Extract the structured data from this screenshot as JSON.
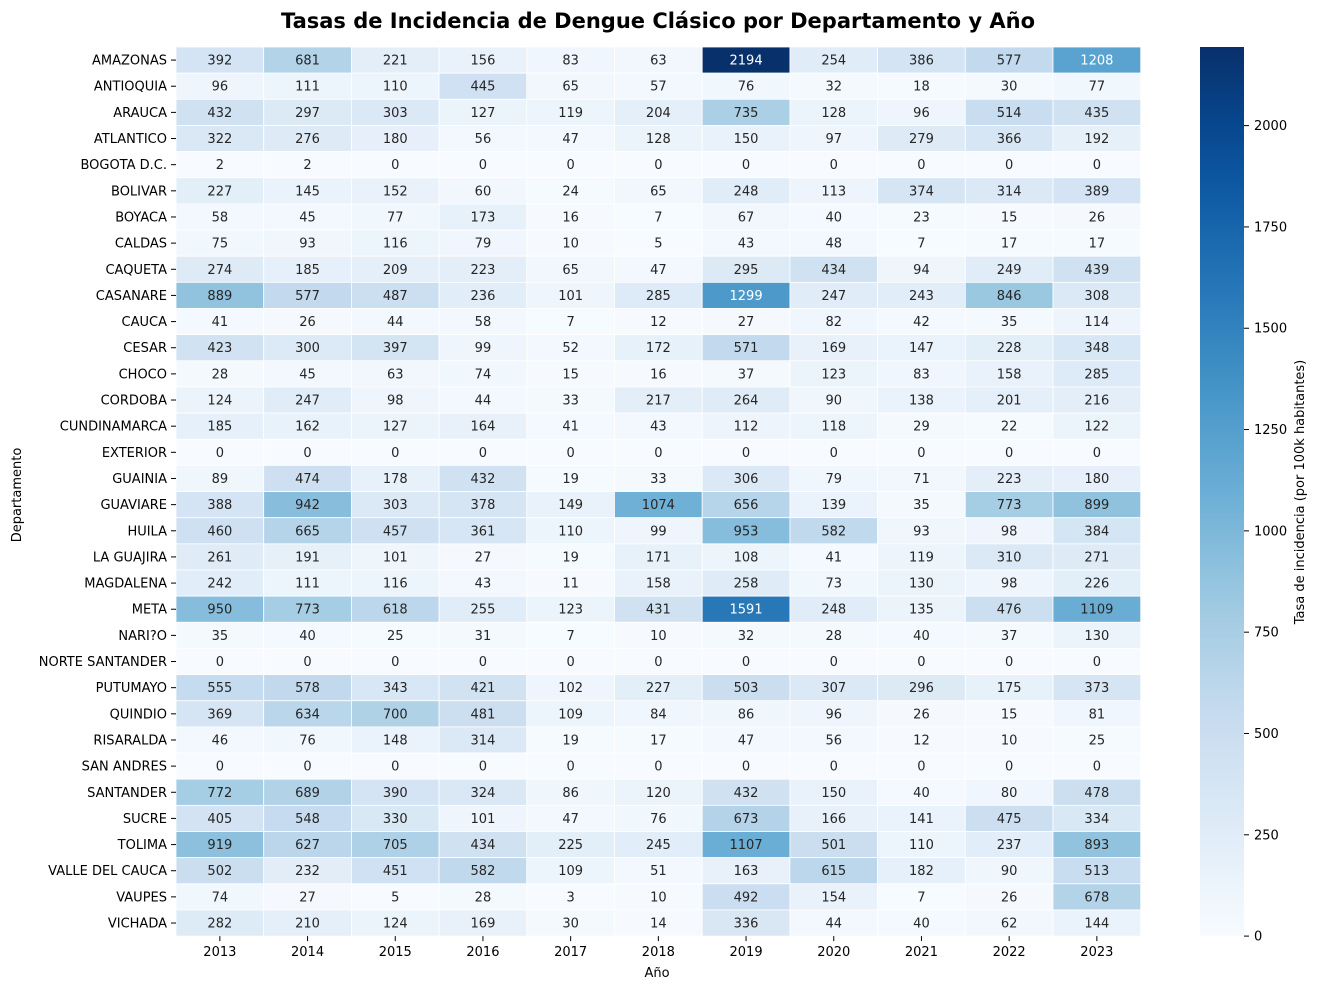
{
  "chart_data": {
    "type": "heatmap",
    "title": "Tasas de Incidencia de Dengue Clásico por Departamento y Año",
    "xlabel": "Año",
    "ylabel": "Departamento",
    "colorbar_label": "Tasa de incidencia (por 100k habitantes)",
    "colormap": "Blues",
    "vmin": 0,
    "vmax": 2194,
    "colorbar_ticks": [
      "0",
      "250",
      "500",
      "750",
      "1000",
      "1250",
      "1500",
      "1750",
      "2000"
    ],
    "x": [
      "2013",
      "2014",
      "2015",
      "2016",
      "2017",
      "2018",
      "2019",
      "2020",
      "2021",
      "2022",
      "2023"
    ],
    "y": [
      "AMAZONAS",
      "ANTIOQUIA",
      "ARAUCA",
      "ATLANTICO",
      "BOGOTA D.C.",
      "BOLIVAR",
      "BOYACA",
      "CALDAS",
      "CAQUETA",
      "CASANARE",
      "CAUCA",
      "CESAR",
      "CHOCO",
      "CORDOBA",
      "CUNDINAMARCA",
      "EXTERIOR",
      "GUAINIA",
      "GUAVIARE",
      "HUILA",
      "LA GUAJIRA",
      "MAGDALENA",
      "META",
      "NARI?O",
      "NORTE SANTANDER",
      "PUTUMAYO",
      "QUINDIO",
      "RISARALDA",
      "SAN ANDRES",
      "SANTANDER",
      "SUCRE",
      "TOLIMA",
      "VALLE DEL CAUCA",
      "VAUPES",
      "VICHADA"
    ],
    "values": [
      [
        392,
        681,
        221,
        156,
        83,
        63,
        2194,
        254,
        386,
        577,
        1208
      ],
      [
        96,
        111,
        110,
        445,
        65,
        57,
        76,
        32,
        18,
        30,
        77
      ],
      [
        432,
        297,
        303,
        127,
        119,
        204,
        735,
        128,
        96,
        514,
        435
      ],
      [
        322,
        276,
        180,
        56,
        47,
        128,
        150,
        97,
        279,
        366,
        192
      ],
      [
        2,
        2,
        0,
        0,
        0,
        0,
        0,
        0,
        0,
        0,
        0
      ],
      [
        227,
        145,
        152,
        60,
        24,
        65,
        248,
        113,
        374,
        314,
        389
      ],
      [
        58,
        45,
        77,
        173,
        16,
        7,
        67,
        40,
        23,
        15,
        26
      ],
      [
        75,
        93,
        116,
        79,
        10,
        5,
        43,
        48,
        7,
        17,
        17
      ],
      [
        274,
        185,
        209,
        223,
        65,
        47,
        295,
        434,
        94,
        249,
        439
      ],
      [
        889,
        577,
        487,
        236,
        101,
        285,
        1299,
        247,
        243,
        846,
        308
      ],
      [
        41,
        26,
        44,
        58,
        7,
        12,
        27,
        82,
        42,
        35,
        114
      ],
      [
        423,
        300,
        397,
        99,
        52,
        172,
        571,
        169,
        147,
        228,
        348
      ],
      [
        28,
        45,
        63,
        74,
        15,
        16,
        37,
        123,
        83,
        158,
        285
      ],
      [
        124,
        247,
        98,
        44,
        33,
        217,
        264,
        90,
        138,
        201,
        216
      ],
      [
        185,
        162,
        127,
        164,
        41,
        43,
        112,
        118,
        29,
        22,
        122
      ],
      [
        0,
        0,
        0,
        0,
        0,
        0,
        0,
        0,
        0,
        0,
        0
      ],
      [
        89,
        474,
        178,
        432,
        19,
        33,
        306,
        79,
        71,
        223,
        180
      ],
      [
        388,
        942,
        303,
        378,
        149,
        1074,
        656,
        139,
        35,
        773,
        899
      ],
      [
        460,
        665,
        457,
        361,
        110,
        99,
        953,
        582,
        93,
        98,
        384
      ],
      [
        261,
        191,
        101,
        27,
        19,
        171,
        108,
        41,
        119,
        310,
        271
      ],
      [
        242,
        111,
        116,
        43,
        11,
        158,
        258,
        73,
        130,
        98,
        226
      ],
      [
        950,
        773,
        618,
        255,
        123,
        431,
        1591,
        248,
        135,
        476,
        1109
      ],
      [
        35,
        40,
        25,
        31,
        7,
        10,
        32,
        28,
        40,
        37,
        130
      ],
      [
        0,
        0,
        0,
        0,
        0,
        0,
        0,
        0,
        0,
        0,
        0
      ],
      [
        555,
        578,
        343,
        421,
        102,
        227,
        503,
        307,
        296,
        175,
        373
      ],
      [
        369,
        634,
        700,
        481,
        109,
        84,
        86,
        96,
        26,
        15,
        81
      ],
      [
        46,
        76,
        148,
        314,
        19,
        17,
        47,
        56,
        12,
        10,
        25
      ],
      [
        0,
        0,
        0,
        0,
        0,
        0,
        0,
        0,
        0,
        0,
        0
      ],
      [
        772,
        689,
        390,
        324,
        86,
        120,
        432,
        150,
        40,
        80,
        478
      ],
      [
        405,
        548,
        330,
        101,
        47,
        76,
        673,
        166,
        141,
        475,
        334
      ],
      [
        919,
        627,
        705,
        434,
        225,
        245,
        1107,
        501,
        110,
        237,
        893
      ],
      [
        502,
        232,
        451,
        582,
        109,
        51,
        163,
        615,
        182,
        90,
        513
      ],
      [
        74,
        27,
        5,
        28,
        3,
        10,
        492,
        154,
        7,
        26,
        678
      ],
      [
        282,
        210,
        124,
        169,
        30,
        14,
        336,
        44,
        40,
        62,
        144
      ]
    ]
  }
}
